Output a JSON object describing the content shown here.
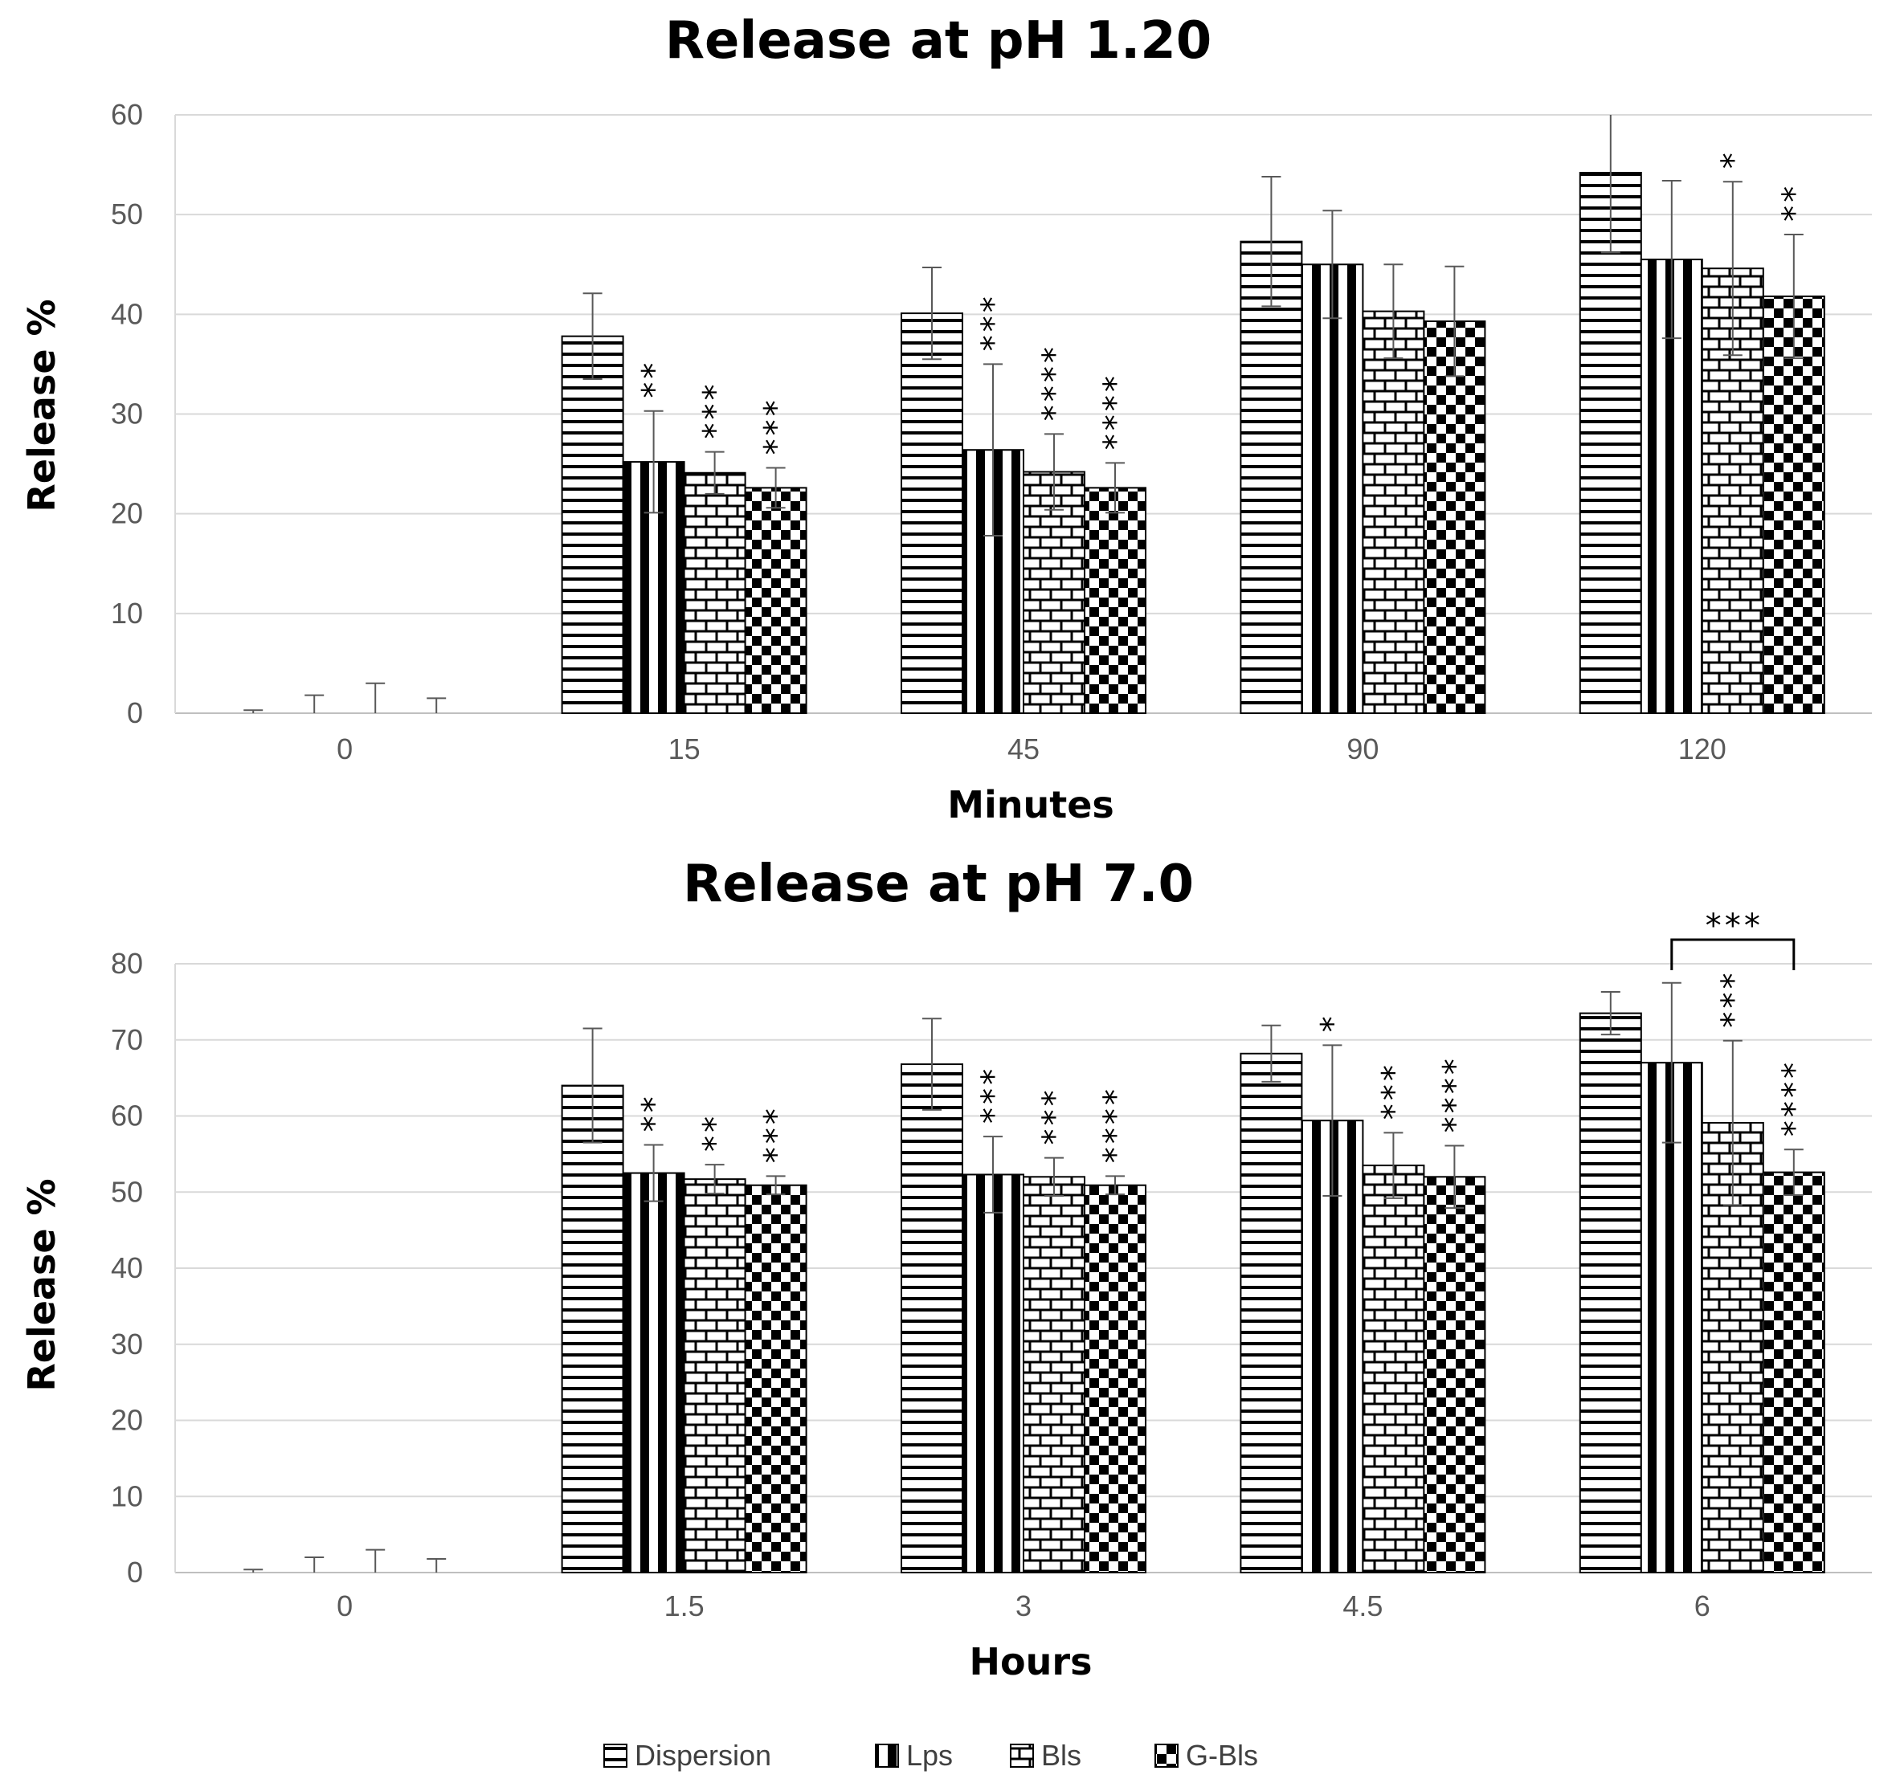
{
  "legend": [
    "Dispersion",
    "Lps",
    "Bls",
    "G-Bls"
  ],
  "chart_data": [
    {
      "type": "bar",
      "title": "Release at pH 1.20",
      "xlabel": "Minutes",
      "ylabel": "Release %",
      "ylim": [
        0,
        60
      ],
      "yticks": [
        0,
        10,
        20,
        30,
        40,
        50,
        60
      ],
      "grid": true,
      "legend_position": "bottom-center",
      "categories": [
        "0",
        "15",
        "45",
        "90",
        "120"
      ],
      "series": [
        {
          "name": "Dispersion",
          "values": [
            0,
            37.8,
            40.1,
            47.3,
            54.2
          ],
          "errors": [
            0.3,
            4.3,
            4.6,
            6.5,
            8.0
          ],
          "significance": [
            "",
            "",
            "",
            "",
            ""
          ]
        },
        {
          "name": "Lps",
          "values": [
            0,
            25.2,
            26.4,
            45.0,
            45.5
          ],
          "errors": [
            1.8,
            5.1,
            8.6,
            5.4,
            7.9
          ],
          "significance": [
            "",
            "**",
            "***",
            "",
            ""
          ]
        },
        {
          "name": "Bls",
          "values": [
            0,
            24.1,
            24.2,
            40.3,
            44.6
          ],
          "errors": [
            3.0,
            2.1,
            3.8,
            4.7,
            8.7
          ],
          "significance": [
            "",
            "***",
            "****",
            "",
            "*"
          ]
        },
        {
          "name": "G-Bls",
          "values": [
            0,
            22.6,
            22.6,
            39.3,
            41.8
          ],
          "errors": [
            1.5,
            2.0,
            2.5,
            5.5,
            6.2
          ],
          "significance": [
            "",
            "***",
            "****",
            "",
            "**"
          ]
        }
      ],
      "brackets": []
    },
    {
      "type": "bar",
      "title": "Release at pH 7.0",
      "xlabel": "Hours",
      "ylabel": "Release %",
      "ylim": [
        0,
        80
      ],
      "yticks": [
        0,
        10,
        20,
        30,
        40,
        50,
        60,
        70,
        80
      ],
      "grid": true,
      "legend_position": "bottom-center",
      "categories": [
        "0",
        "1.5",
        "3",
        "4.5",
        "6"
      ],
      "series": [
        {
          "name": "Dispersion",
          "values": [
            0,
            64.0,
            66.8,
            68.2,
            73.5
          ],
          "errors": [
            0.4,
            7.5,
            6.0,
            3.7,
            2.8
          ],
          "significance": [
            "",
            "",
            "",
            "",
            ""
          ]
        },
        {
          "name": "Lps",
          "values": [
            0,
            52.5,
            52.3,
            59.4,
            67.0
          ],
          "errors": [
            2.0,
            3.7,
            5.0,
            9.9,
            10.5
          ],
          "significance": [
            "",
            "**",
            "***",
            "*",
            ""
          ]
        },
        {
          "name": "Bls",
          "values": [
            0,
            51.7,
            52.0,
            53.5,
            59.1
          ],
          "errors": [
            3.0,
            1.9,
            2.5,
            4.3,
            10.8
          ],
          "significance": [
            "",
            "**",
            "***",
            "***",
            "***"
          ]
        },
        {
          "name": "G-Bls",
          "values": [
            0,
            50.9,
            50.9,
            52.0,
            52.6
          ],
          "errors": [
            1.8,
            1.2,
            1.2,
            4.1,
            3.0
          ],
          "significance": [
            "",
            "***",
            "****",
            "****",
            "****"
          ]
        }
      ],
      "brackets": [
        {
          "category_index": 4,
          "from_series": 1,
          "to_series": 3,
          "label": "***"
        }
      ]
    }
  ]
}
